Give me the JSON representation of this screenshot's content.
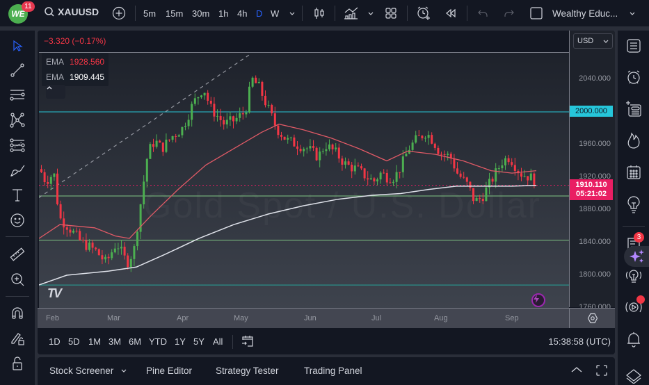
{
  "topbar": {
    "logo_text": "WE",
    "notification_count": "11",
    "symbol": "XAUUSD",
    "intervals": [
      "5m",
      "15m",
      "30m",
      "1h",
      "4h",
      "D",
      "W"
    ],
    "active_interval": "D",
    "layout_name": "Wealthy Educ...",
    "icons": [
      "search-icon",
      "add-symbol-icon",
      "chevron-down-icon",
      "candles-icon",
      "indicators-icon",
      "layouts-icon",
      "alert-add-icon",
      "replay-icon",
      "undo-icon",
      "redo-icon",
      "fullscreen-checkbox-icon"
    ]
  },
  "chart": {
    "change": "−3.320 (−0.17%)",
    "legend": [
      {
        "label": "EMA",
        "value": "1928.560",
        "color": "#f23645"
      },
      {
        "label": "EMA",
        "value": "1909.445",
        "color": "#ffffff"
      }
    ],
    "watermark": "Gold Spot / U.S. Dollar",
    "currency": "USD",
    "price_ticks": [
      "2040.000",
      "2000.000",
      "1960.000",
      "1920.000",
      "1880.000",
      "1840.000",
      "1800.000",
      "1760.000"
    ],
    "price_labels": {
      "level": "2000.000",
      "last_price": "1910.110",
      "countdown": "05:21:02"
    },
    "time_ticks": [
      "Feb",
      "Mar",
      "Apr",
      "May",
      "Jun",
      "Jul",
      "Aug",
      "Sep"
    ]
  },
  "chart_data": {
    "type": "candlestick",
    "title": "XAUUSD, D",
    "ylim": [
      1760,
      2080
    ],
    "x_ticks": [
      "Feb",
      "Mar",
      "Apr",
      "May",
      "Jun",
      "Jul",
      "Aug",
      "Sep"
    ],
    "series": [
      {
        "name": "EMA (fast)",
        "last": 1928.56,
        "color": "#f23645"
      },
      {
        "name": "EMA (slow)",
        "last": 1909.445,
        "color": "#ffffff"
      }
    ],
    "horizontal_levels": [
      {
        "price": 2000,
        "color": "#26c6da"
      },
      {
        "price": 1897,
        "color": "#81c784"
      },
      {
        "price": 1843,
        "color": "#81c784"
      },
      {
        "price": 1788,
        "color": "#26a69a"
      }
    ],
    "last_price": 1910.11,
    "trend_line": {
      "from": [
        1895,
        "late Jan"
      ],
      "to": [
        2070,
        "early May"
      ],
      "style": "dashed"
    }
  },
  "rangebar": {
    "ranges": [
      "1D",
      "5D",
      "1M",
      "3M",
      "6M",
      "YTD",
      "1Y",
      "5Y",
      "All"
    ],
    "clock": "15:38:58 (UTC)"
  },
  "bottombar": {
    "tabs": [
      "Stock Screener",
      "Pine Editor",
      "Strategy Tester",
      "Trading Panel"
    ]
  },
  "rightbar": {
    "chat_badge": "3"
  }
}
